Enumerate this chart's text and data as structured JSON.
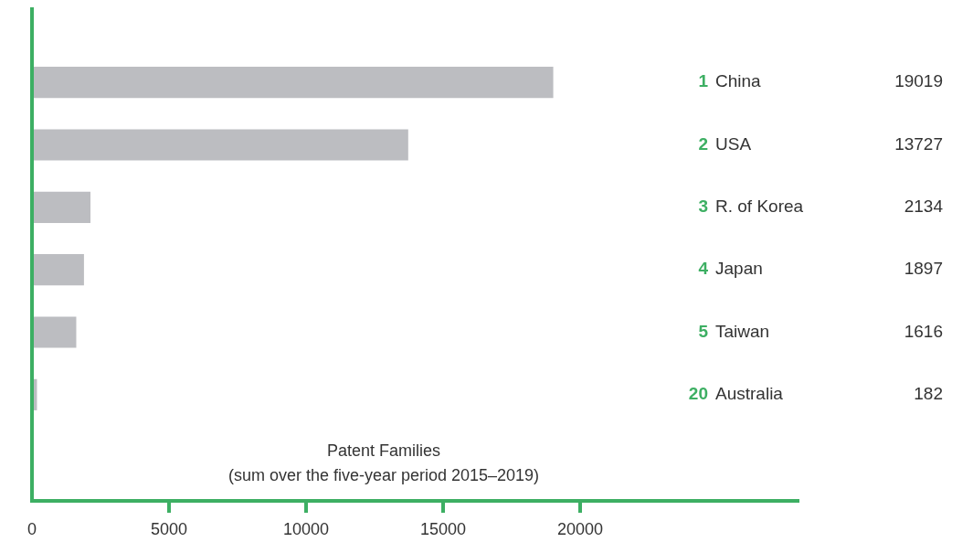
{
  "chart_data": {
    "type": "bar",
    "orientation": "horizontal",
    "xlabel": "Patent Families\n(sum over the five-year period 2015–2019)",
    "categories": [
      "1 China",
      "2 USA",
      "3 R. of Korea",
      "4 Japan",
      "5 Taiwan",
      "20 Australia"
    ],
    "values": [
      19019,
      13727,
      2134,
      1897,
      1616,
      182
    ],
    "color": "#bcbdc1",
    "data_labels": true,
    "xlim": [
      0,
      28000
    ],
    "xticks": [
      0,
      5000,
      10000,
      15000,
      20000
    ]
  }
}
